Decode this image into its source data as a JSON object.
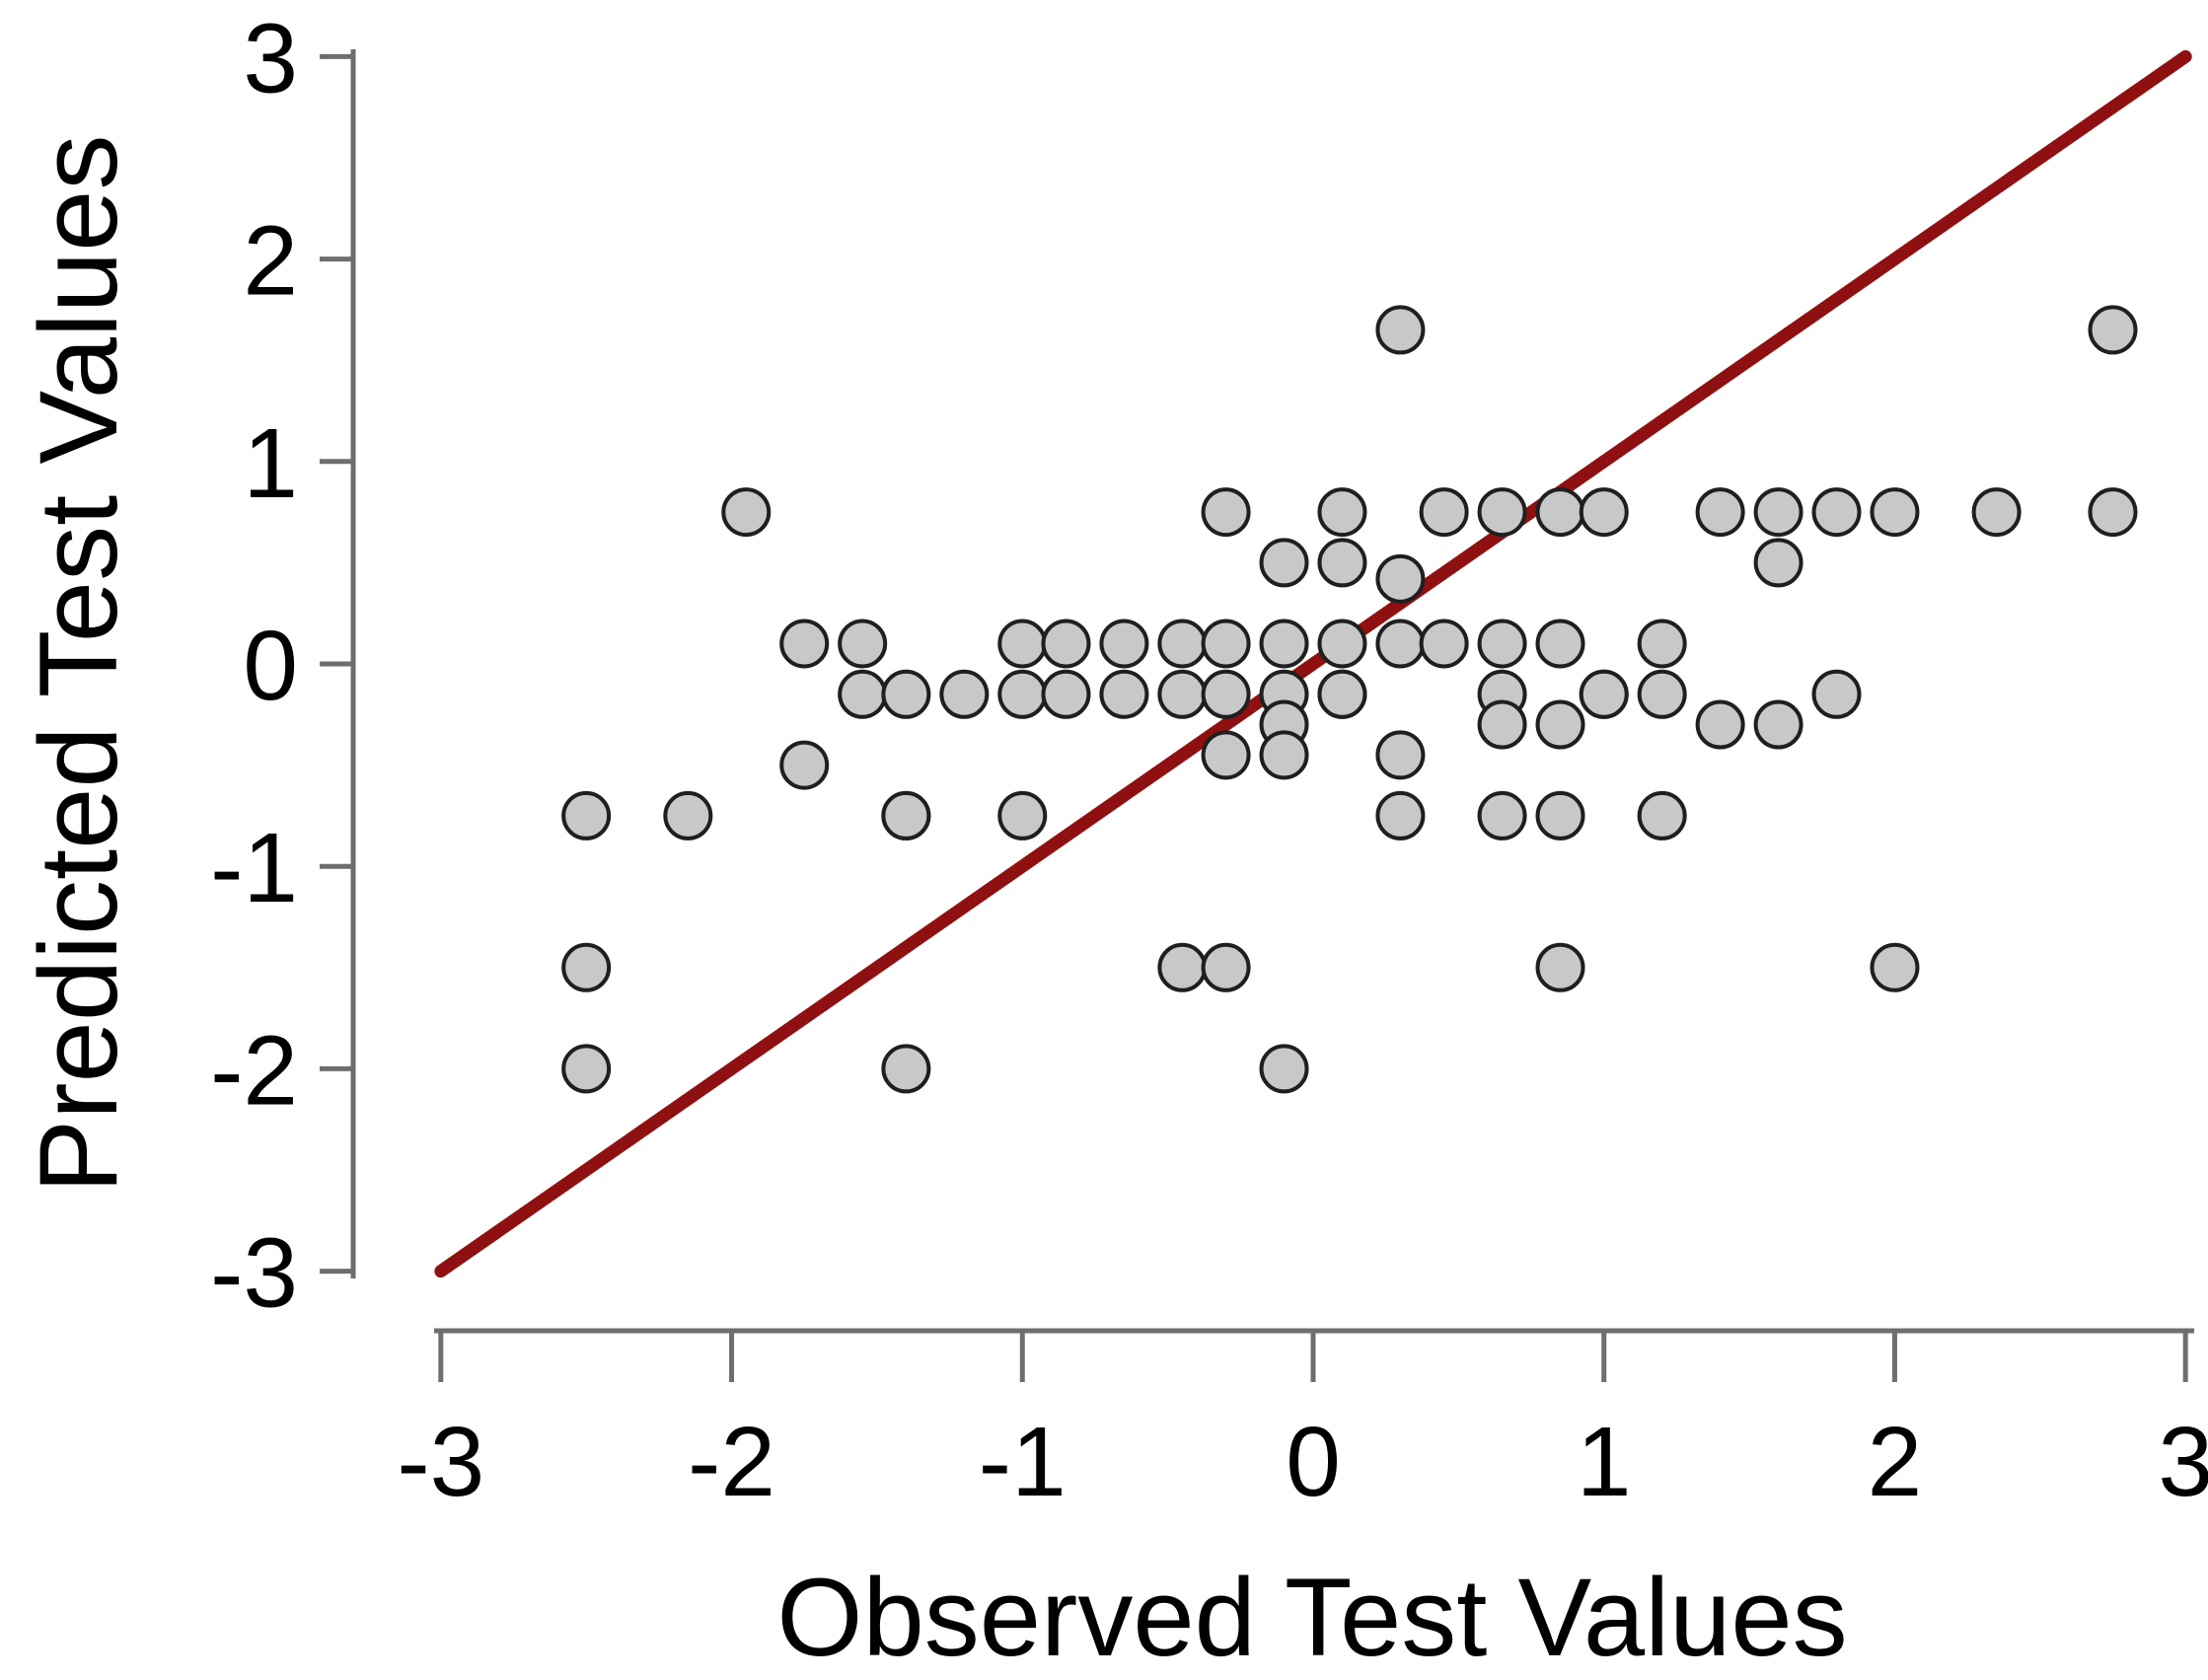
{
  "figure": {
    "background": "#ffffff",
    "text_color": "#000000",
    "axis_line_color": "#6e6e6e",
    "identity_line_color": "#8F1010",
    "point_fill": "#C8C8C8",
    "point_stroke": "#1f1f1f"
  },
  "chart_data": {
    "type": "scatter",
    "title": "",
    "xlabel": "Observed Test Values",
    "ylabel": "Predicted Test Values",
    "xlim": [
      -3,
      3
    ],
    "ylim": [
      -3,
      3
    ],
    "xticks": [
      "-3",
      "-2",
      "-1",
      "0",
      "1",
      "2",
      "3"
    ],
    "yticks": [
      "3",
      "2",
      "1",
      "0",
      "-1",
      "-2",
      "-3"
    ],
    "xtick_values": [
      -3,
      -2,
      -1,
      0,
      1,
      2,
      3
    ],
    "ytick_values": [
      3,
      2,
      1,
      0,
      -1,
      -2,
      -3
    ],
    "grid": "off",
    "legend": "none",
    "identity_line": {
      "from": [
        -3,
        -3
      ],
      "to": [
        3,
        3
      ]
    },
    "points": [
      [
        0.3,
        1.65
      ],
      [
        2.75,
        1.65
      ],
      [
        -1.95,
        0.75
      ],
      [
        -0.3,
        0.75
      ],
      [
        0.1,
        0.75
      ],
      [
        0.45,
        0.75
      ],
      [
        0.65,
        0.75
      ],
      [
        0.85,
        0.75
      ],
      [
        1.0,
        0.75
      ],
      [
        1.4,
        0.75
      ],
      [
        1.6,
        0.75
      ],
      [
        1.8,
        0.75
      ],
      [
        2.0,
        0.75
      ],
      [
        2.35,
        0.75
      ],
      [
        2.75,
        0.75
      ],
      [
        -0.1,
        0.5
      ],
      [
        0.1,
        0.5
      ],
      [
        0.3,
        0.42
      ],
      [
        1.6,
        0.5
      ],
      [
        -1.75,
        0.1
      ],
      [
        -1.55,
        0.1
      ],
      [
        -1.0,
        0.1
      ],
      [
        -0.85,
        0.1
      ],
      [
        -0.65,
        0.1
      ],
      [
        -0.45,
        0.1
      ],
      [
        -0.3,
        0.1
      ],
      [
        -0.1,
        0.1
      ],
      [
        0.1,
        0.1
      ],
      [
        0.3,
        0.1
      ],
      [
        0.45,
        0.1
      ],
      [
        0.65,
        0.1
      ],
      [
        0.85,
        0.1
      ],
      [
        1.2,
        0.1
      ],
      [
        -1.55,
        -0.15
      ],
      [
        -1.4,
        -0.15
      ],
      [
        -1.2,
        -0.15
      ],
      [
        -1.0,
        -0.15
      ],
      [
        -0.85,
        -0.15
      ],
      [
        -0.65,
        -0.15
      ],
      [
        -0.45,
        -0.15
      ],
      [
        -0.3,
        -0.15
      ],
      [
        -0.1,
        -0.15
      ],
      [
        0.1,
        -0.15
      ],
      [
        0.1,
        -0.15
      ],
      [
        0.65,
        -0.15
      ],
      [
        1.0,
        -0.15
      ],
      [
        1.0,
        -0.15
      ],
      [
        1.2,
        -0.15
      ],
      [
        1.8,
        -0.15
      ],
      [
        -0.1,
        -0.3
      ],
      [
        0.65,
        -0.3
      ],
      [
        0.85,
        -0.3
      ],
      [
        1.4,
        -0.3
      ],
      [
        1.6,
        -0.3
      ],
      [
        -1.75,
        -0.5
      ],
      [
        -0.3,
        -0.45
      ],
      [
        -0.1,
        -0.45
      ],
      [
        0.3,
        -0.45
      ],
      [
        -2.5,
        -0.75
      ],
      [
        -2.15,
        -0.75
      ],
      [
        -1.4,
        -0.75
      ],
      [
        -1.4,
        -0.75
      ],
      [
        -1.0,
        -0.75
      ],
      [
        0.3,
        -0.75
      ],
      [
        0.65,
        -0.75
      ],
      [
        0.85,
        -0.75
      ],
      [
        1.2,
        -0.75
      ],
      [
        -2.5,
        -1.5
      ],
      [
        -0.45,
        -1.5
      ],
      [
        -0.3,
        -1.5
      ],
      [
        0.85,
        -1.5
      ],
      [
        2.0,
        -1.5
      ],
      [
        -2.5,
        -2.0
      ],
      [
        -1.4,
        -2.0
      ],
      [
        -0.1,
        -2.0
      ]
    ]
  }
}
